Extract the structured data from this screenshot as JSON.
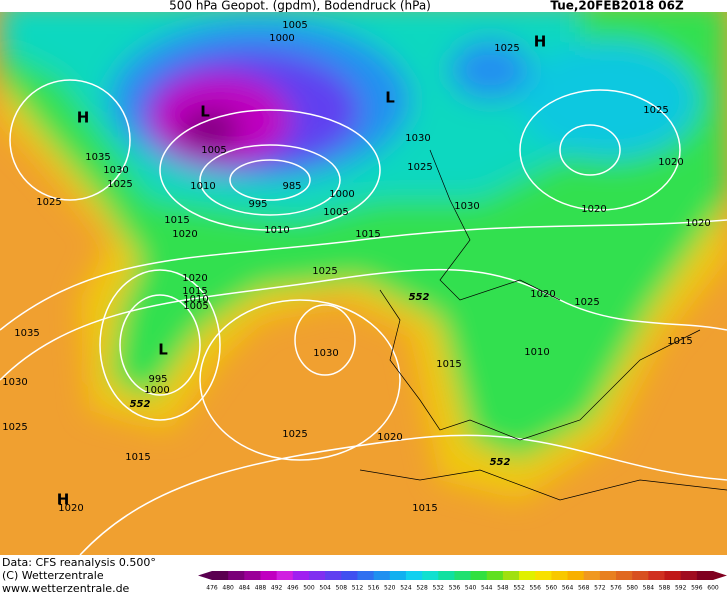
{
  "header": {
    "title": "500 hPa Geopot. (gpdm), Bodendruck (hPa)",
    "date": "Tue,20FEB2018 06Z"
  },
  "map": {
    "isobar_labels": [
      1005,
      1000,
      1025,
      1035,
      1030,
      1025,
      1005,
      1010,
      985,
      995,
      1000,
      1005,
      1015,
      1020,
      1010,
      1015,
      1030,
      1025,
      1030,
      1025,
      1020,
      1020,
      1020,
      1025,
      1025,
      1020,
      1015,
      1010,
      1005,
      995,
      1000,
      1030,
      1035,
      1030,
      1025,
      1015,
      1025,
      1020,
      1015,
      1010,
      1020,
      1025,
      1015,
      1020,
      1015
    ],
    "geopotential_labels": [
      552,
      552,
      552
    ],
    "centers": [
      "H",
      "L",
      "H",
      "L",
      "L",
      "H"
    ]
  },
  "footer": {
    "data": "Data: CFS reanalysis 0.500°",
    "copyright": "(C) Wetterzentrale",
    "url": "www.wetterzentrale.de"
  },
  "colorbar": {
    "ticks": [
      476,
      480,
      484,
      488,
      492,
      496,
      500,
      504,
      508,
      512,
      516,
      520,
      524,
      528,
      532,
      536,
      540,
      544,
      548,
      552,
      556,
      560,
      564,
      568,
      572,
      576,
      580,
      584,
      588,
      592,
      596,
      600
    ],
    "colors": [
      "#5a0050",
      "#7a0078",
      "#9a0098",
      "#c000c0",
      "#d020e0",
      "#a020f0",
      "#8030f0",
      "#6040f0",
      "#4050f0",
      "#3070f0",
      "#2090f0",
      "#10b0f0",
      "#10d0f0",
      "#10e0d0",
      "#10e0a0",
      "#20e070",
      "#30e040",
      "#60e020",
      "#a0e010",
      "#e0f000",
      "#f8e000",
      "#f8c800",
      "#f8b000",
      "#f09820",
      "#e88020",
      "#e06820",
      "#d85020",
      "#d03020",
      "#c01818",
      "#a00c20",
      "#800020"
    ]
  }
}
